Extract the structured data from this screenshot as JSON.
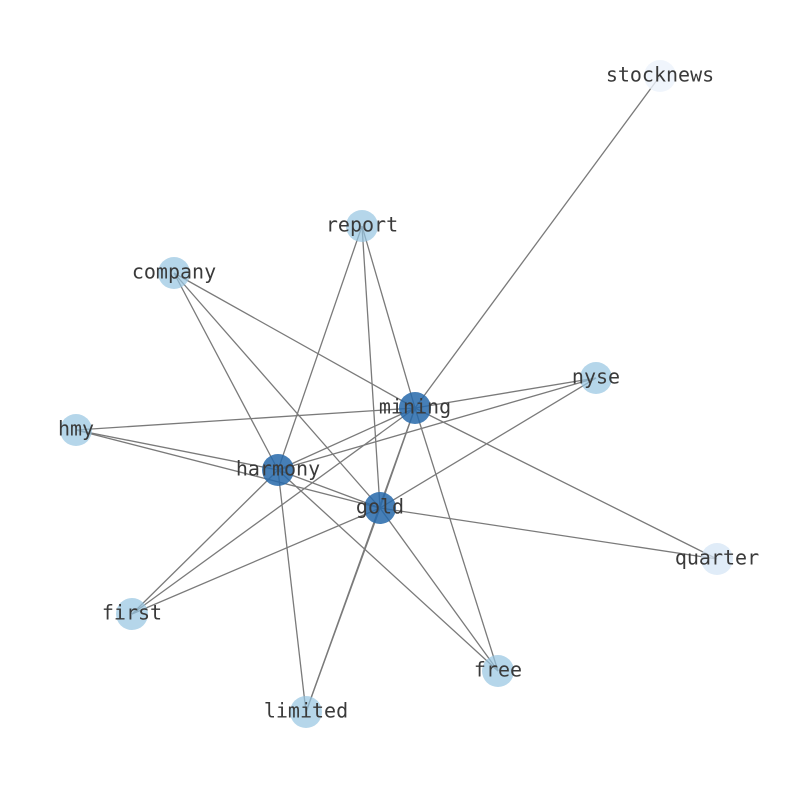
{
  "nodes": [
    {
      "label": "stocknews"
    },
    {
      "label": "report"
    },
    {
      "label": "company"
    },
    {
      "label": "nyse"
    },
    {
      "label": "mining"
    },
    {
      "label": "hmy"
    },
    {
      "label": "harmony"
    },
    {
      "label": "gold"
    },
    {
      "label": "quarter"
    },
    {
      "label": "first"
    },
    {
      "label": "free"
    },
    {
      "label": "limited"
    }
  ]
}
